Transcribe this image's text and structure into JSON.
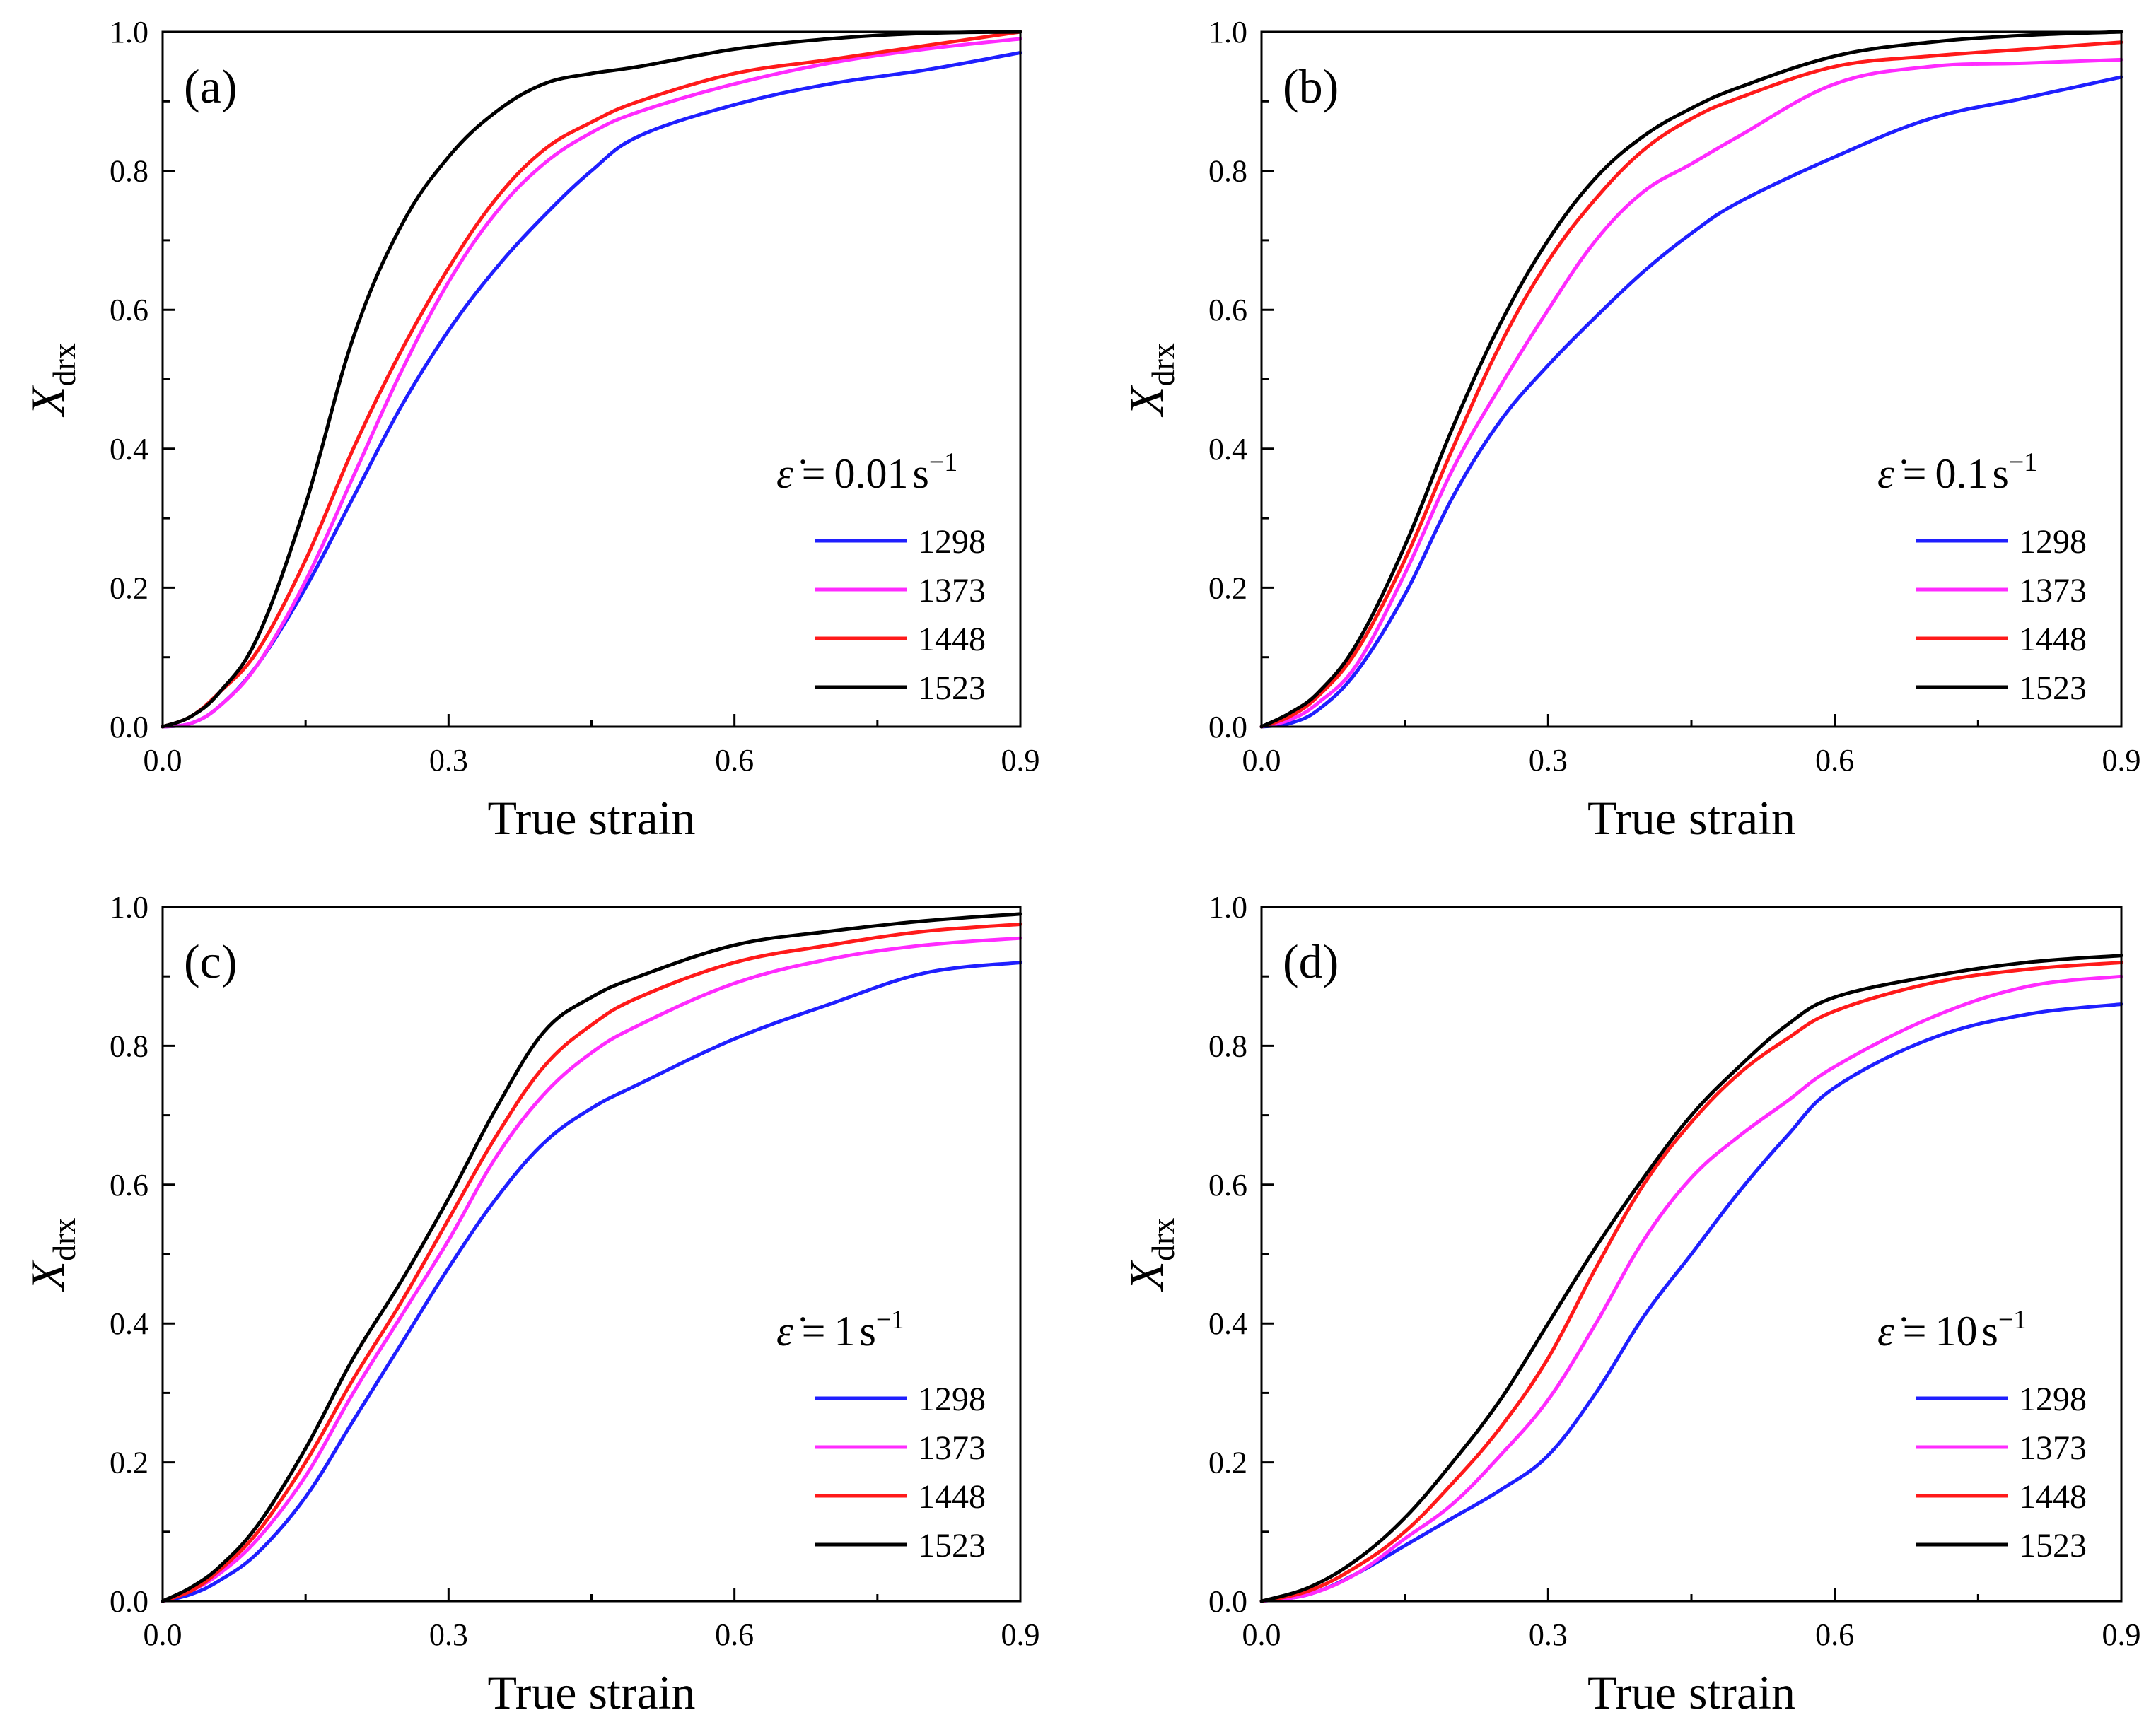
{
  "figure": {
    "panels": [
      {
        "label": "(a)",
        "rate_value": "0.01",
        "rate_unit": "s",
        "rate_exponent": "−1",
        "legend_position": "right",
        "x_tick_labels": [
          "0.0",
          "0.3",
          "0.6",
          "0.9"
        ],
        "y_tick_labels": [
          "0.0",
          "0.2",
          "0.4",
          "0.6",
          "0.8",
          "1.0"
        ]
      },
      {
        "label": "(b)",
        "rate_value": "0.1",
        "rate_unit": "s",
        "rate_exponent": "−1",
        "legend_position": "right",
        "x_tick_labels": [
          "0.0",
          "0.3",
          "0.6",
          "0.9"
        ],
        "y_tick_labels": [
          "0.0",
          "0.2",
          "0.4",
          "0.6",
          "0.8",
          "1.0"
        ]
      },
      {
        "label": "(c)",
        "rate_value": "1",
        "rate_unit": "s",
        "rate_exponent": "−1",
        "legend_position": "right",
        "x_tick_labels": [
          "0.0",
          "0.3",
          "0.6",
          "0.9"
        ],
        "y_tick_labels": [
          "0.0",
          "0.2",
          "0.4",
          "0.6",
          "0.8",
          "1.0"
        ]
      },
      {
        "label": "(d)",
        "rate_value": "10",
        "rate_unit": "s",
        "rate_exponent": "−1",
        "legend_position": "right",
        "x_tick_labels": [
          "0.0",
          "0.3",
          "0.6",
          "0.9"
        ],
        "y_tick_labels": [
          "0.0",
          "0.2",
          "0.4",
          "0.6",
          "0.8",
          "1.0"
        ]
      }
    ],
    "xlabel": "True strain",
    "ylabel_main": "X",
    "ylabel_sub": "drx",
    "rate_symbol": "ε̇",
    "rate_equals": "=",
    "colors": {
      "1298": "#1f1fff",
      "1373": "#ff2bff",
      "1448": "#ff1a1a",
      "1523": "#000000",
      "axis": "#000000"
    }
  },
  "chart_data": [
    {
      "type": "line",
      "title": "(a)",
      "xlabel": "True strain",
      "ylabel": "X_drx",
      "xlim": [
        0,
        0.9
      ],
      "ylim": [
        0,
        1.0
      ],
      "strain_rate": "0.01 s^-1",
      "grid": false,
      "legend": "right",
      "series": [
        {
          "name": "1298",
          "color": "#1f1fff",
          "x": [
            0,
            0.03,
            0.06,
            0.1,
            0.15,
            0.2,
            0.25,
            0.3,
            0.35,
            0.4,
            0.45,
            0.5,
            0.6,
            0.7,
            0.8,
            0.9
          ],
          "values": [
            0,
            0.005,
            0.03,
            0.09,
            0.2,
            0.33,
            0.46,
            0.57,
            0.66,
            0.735,
            0.8,
            0.85,
            0.895,
            0.925,
            0.945,
            0.97
          ]
        },
        {
          "name": "1373",
          "color": "#ff2bff",
          "x": [
            0,
            0.03,
            0.06,
            0.1,
            0.15,
            0.2,
            0.25,
            0.3,
            0.35,
            0.4,
            0.45,
            0.5,
            0.6,
            0.7,
            0.8,
            0.9
          ],
          "values": [
            0,
            0.005,
            0.03,
            0.09,
            0.21,
            0.36,
            0.51,
            0.64,
            0.74,
            0.81,
            0.855,
            0.885,
            0.925,
            0.955,
            0.975,
            0.99
          ]
        },
        {
          "name": "1448",
          "color": "#ff1a1a",
          "x": [
            0,
            0.03,
            0.06,
            0.1,
            0.15,
            0.2,
            0.25,
            0.3,
            0.35,
            0.4,
            0.45,
            0.5,
            0.6,
            0.7,
            0.8,
            0.9
          ],
          "values": [
            0,
            0.015,
            0.05,
            0.11,
            0.24,
            0.4,
            0.54,
            0.66,
            0.76,
            0.83,
            0.87,
            0.9,
            0.94,
            0.96,
            0.98,
            1.0
          ]
        },
        {
          "name": "1523",
          "color": "#000000",
          "x": [
            0,
            0.03,
            0.06,
            0.1,
            0.15,
            0.2,
            0.25,
            0.3,
            0.35,
            0.4,
            0.45,
            0.5,
            0.6,
            0.7,
            0.8,
            0.9
          ],
          "values": [
            0,
            0.015,
            0.05,
            0.13,
            0.32,
            0.56,
            0.72,
            0.82,
            0.885,
            0.925,
            0.94,
            0.95,
            0.975,
            0.99,
            0.998,
            1.0
          ]
        }
      ]
    },
    {
      "type": "line",
      "title": "(b)",
      "xlabel": "True strain",
      "ylabel": "X_drx",
      "xlim": [
        0,
        0.9
      ],
      "ylim": [
        0,
        1.0
      ],
      "strain_rate": "0.1 s^-1",
      "grid": false,
      "legend": "right",
      "series": [
        {
          "name": "1298",
          "color": "#1f1fff",
          "x": [
            0,
            0.03,
            0.06,
            0.1,
            0.15,
            0.2,
            0.25,
            0.3,
            0.35,
            0.4,
            0.45,
            0.5,
            0.6,
            0.7,
            0.8,
            0.9
          ],
          "values": [
            0,
            0.005,
            0.025,
            0.08,
            0.19,
            0.33,
            0.44,
            0.52,
            0.59,
            0.655,
            0.71,
            0.755,
            0.82,
            0.875,
            0.905,
            0.935
          ]
        },
        {
          "name": "1373",
          "color": "#ff2bff",
          "x": [
            0,
            0.03,
            0.06,
            0.1,
            0.15,
            0.2,
            0.25,
            0.3,
            0.35,
            0.4,
            0.45,
            0.5,
            0.6,
            0.7,
            0.8,
            0.9
          ],
          "values": [
            0,
            0.01,
            0.035,
            0.09,
            0.22,
            0.37,
            0.49,
            0.6,
            0.7,
            0.77,
            0.81,
            0.85,
            0.925,
            0.95,
            0.955,
            0.96
          ]
        },
        {
          "name": "1448",
          "color": "#ff1a1a",
          "x": [
            0,
            0.03,
            0.06,
            0.1,
            0.15,
            0.2,
            0.25,
            0.3,
            0.35,
            0.4,
            0.45,
            0.5,
            0.6,
            0.7,
            0.8,
            0.9
          ],
          "values": [
            0,
            0.015,
            0.045,
            0.11,
            0.24,
            0.4,
            0.55,
            0.67,
            0.76,
            0.83,
            0.875,
            0.905,
            0.95,
            0.965,
            0.975,
            0.985
          ]
        },
        {
          "name": "1523",
          "color": "#000000",
          "x": [
            0,
            0.03,
            0.06,
            0.1,
            0.15,
            0.2,
            0.25,
            0.3,
            0.35,
            0.4,
            0.45,
            0.5,
            0.6,
            0.7,
            0.8,
            0.9
          ],
          "values": [
            0,
            0.02,
            0.05,
            0.12,
            0.26,
            0.43,
            0.58,
            0.7,
            0.79,
            0.85,
            0.89,
            0.92,
            0.965,
            0.985,
            0.995,
            1.0
          ]
        }
      ]
    },
    {
      "type": "line",
      "title": "(c)",
      "xlabel": "True strain",
      "ylabel": "X_drx",
      "xlim": [
        0,
        0.9
      ],
      "ylim": [
        0,
        1.0
      ],
      "strain_rate": "1 s^-1",
      "grid": false,
      "legend": "right",
      "series": [
        {
          "name": "1298",
          "color": "#1f1fff",
          "x": [
            0,
            0.03,
            0.06,
            0.1,
            0.15,
            0.2,
            0.25,
            0.3,
            0.35,
            0.4,
            0.45,
            0.5,
            0.6,
            0.7,
            0.8,
            0.9
          ],
          "values": [
            0,
            0.01,
            0.03,
            0.07,
            0.15,
            0.26,
            0.37,
            0.48,
            0.58,
            0.66,
            0.71,
            0.745,
            0.81,
            0.86,
            0.905,
            0.92
          ]
        },
        {
          "name": "1373",
          "color": "#ff2bff",
          "x": [
            0,
            0.03,
            0.06,
            0.1,
            0.15,
            0.2,
            0.25,
            0.3,
            0.35,
            0.4,
            0.45,
            0.5,
            0.6,
            0.7,
            0.8,
            0.9
          ],
          "values": [
            0,
            0.015,
            0.04,
            0.09,
            0.18,
            0.3,
            0.41,
            0.52,
            0.64,
            0.73,
            0.79,
            0.83,
            0.89,
            0.925,
            0.945,
            0.955
          ]
        },
        {
          "name": "1448",
          "color": "#ff1a1a",
          "x": [
            0,
            0.03,
            0.06,
            0.1,
            0.15,
            0.2,
            0.25,
            0.3,
            0.35,
            0.4,
            0.45,
            0.5,
            0.6,
            0.7,
            0.8,
            0.9
          ],
          "values": [
            0,
            0.015,
            0.045,
            0.1,
            0.2,
            0.32,
            0.43,
            0.55,
            0.67,
            0.77,
            0.83,
            0.87,
            0.92,
            0.945,
            0.965,
            0.975
          ]
        },
        {
          "name": "1523",
          "color": "#000000",
          "x": [
            0,
            0.03,
            0.06,
            0.1,
            0.15,
            0.2,
            0.25,
            0.3,
            0.35,
            0.4,
            0.45,
            0.5,
            0.6,
            0.7,
            0.8,
            0.9
          ],
          "values": [
            0,
            0.02,
            0.05,
            0.11,
            0.22,
            0.35,
            0.46,
            0.58,
            0.71,
            0.82,
            0.87,
            0.9,
            0.945,
            0.965,
            0.98,
            0.99
          ]
        }
      ]
    },
    {
      "type": "line",
      "title": "(d)",
      "xlabel": "True strain",
      "ylabel": "X_drx",
      "xlim": [
        0,
        0.9
      ],
      "ylim": [
        0,
        1.0
      ],
      "strain_rate": "10 s^-1",
      "grid": false,
      "legend": "right",
      "series": [
        {
          "name": "1298",
          "color": "#1f1fff",
          "x": [
            0,
            0.05,
            0.1,
            0.15,
            0.2,
            0.25,
            0.3,
            0.35,
            0.4,
            0.45,
            0.5,
            0.55,
            0.6,
            0.7,
            0.8,
            0.9
          ],
          "values": [
            0,
            0.01,
            0.04,
            0.08,
            0.12,
            0.16,
            0.21,
            0.3,
            0.41,
            0.5,
            0.59,
            0.67,
            0.74,
            0.81,
            0.845,
            0.86
          ]
        },
        {
          "name": "1373",
          "color": "#ff2bff",
          "x": [
            0,
            0.05,
            0.1,
            0.15,
            0.2,
            0.25,
            0.3,
            0.35,
            0.4,
            0.45,
            0.5,
            0.55,
            0.6,
            0.7,
            0.8,
            0.9
          ],
          "values": [
            0,
            0.01,
            0.04,
            0.09,
            0.14,
            0.21,
            0.29,
            0.4,
            0.52,
            0.61,
            0.67,
            0.72,
            0.77,
            0.84,
            0.885,
            0.9
          ]
        },
        {
          "name": "1448",
          "color": "#ff1a1a",
          "x": [
            0,
            0.05,
            0.1,
            0.15,
            0.2,
            0.25,
            0.3,
            0.35,
            0.4,
            0.45,
            0.5,
            0.55,
            0.6,
            0.7,
            0.8,
            0.9
          ],
          "values": [
            0,
            0.015,
            0.05,
            0.1,
            0.17,
            0.25,
            0.35,
            0.48,
            0.6,
            0.69,
            0.76,
            0.81,
            0.85,
            0.89,
            0.91,
            0.92
          ]
        },
        {
          "name": "1523",
          "color": "#000000",
          "x": [
            0,
            0.05,
            0.1,
            0.15,
            0.2,
            0.25,
            0.3,
            0.35,
            0.4,
            0.45,
            0.5,
            0.55,
            0.6,
            0.7,
            0.8,
            0.9
          ],
          "values": [
            0,
            0.02,
            0.06,
            0.12,
            0.2,
            0.29,
            0.4,
            0.51,
            0.61,
            0.7,
            0.77,
            0.83,
            0.87,
            0.9,
            0.92,
            0.93
          ]
        }
      ]
    }
  ]
}
